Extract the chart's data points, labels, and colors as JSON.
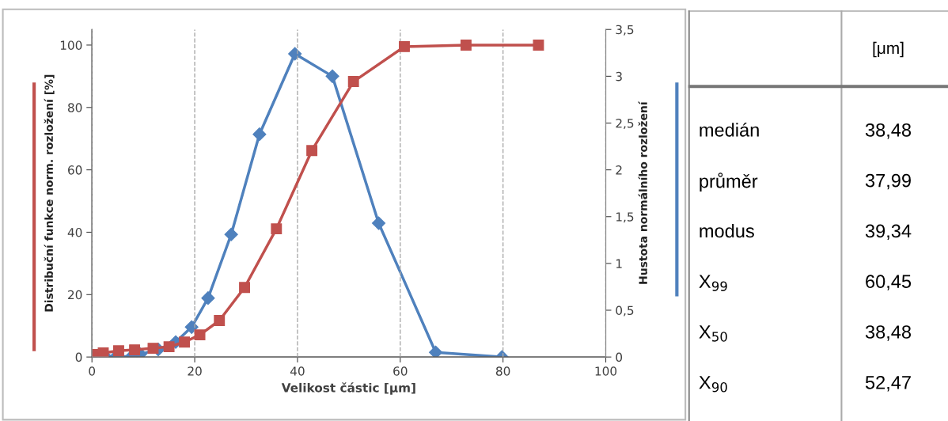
{
  "chart_data": [
    {
      "type": "line",
      "xlabel": "Velikost částic [μm]",
      "ylabel": "Distribuční funkce norm. rozložení [%]",
      "y2label": "Hustota normálního rozložení",
      "xlim": [
        0,
        100
      ],
      "xticks": [
        0,
        20,
        40,
        60,
        80,
        100
      ],
      "ylim": [
        0,
        105
      ],
      "yticks": [
        0,
        20,
        40,
        60,
        80,
        100
      ],
      "y2lim": [
        0,
        3.5
      ],
      "y2ticks": [
        0,
        {
          "value": 0.5,
          "label": "0,5"
        },
        1,
        {
          "value": 1.5,
          "label": "1,5"
        },
        2,
        {
          "value": 2.5,
          "label": "2,5"
        },
        3,
        {
          "value": 3.5,
          "label": "3,5"
        }
      ],
      "grid": "x",
      "line_style": "solid",
      "legend": false,
      "series": [
        {
          "color": "#c0504d",
          "marker": "square",
          "x": [
            0.2,
            2.2,
            5.2,
            8.3,
            11.9,
            15,
            18,
            21,
            24.8,
            29.7,
            35.9,
            42.8,
            50.9,
            60.8,
            72.8,
            86.9
          ],
          "values": [
            0.8,
            1.3,
            2,
            2.3,
            2.8,
            3.3,
            4.8,
            7.1,
            11.7,
            22.3,
            41.1,
            66.2,
            88.3,
            99.5,
            100,
            100
          ]
        },
        {
          "color": "#4f81bd",
          "marker": "diamond",
          "axis": "y2",
          "x": [
            0.5,
            2.5,
            4.6,
            7.8,
            9.4,
            12.9,
            16.3,
            19.4,
            22.6,
            27.1,
            32.6,
            39.5,
            46.8,
            55.8,
            66.9,
            79.8
          ],
          "values": [
            0,
            0.01,
            0,
            0.01,
            0.03,
            0.08,
            0.16,
            0.32,
            0.63,
            1.31,
            2.38,
            3.24,
            3.0,
            1.43,
            0.05,
            0
          ]
        }
      ]
    },
    {
      "type": "other",
      "categories": [
        "medián",
        "průměr",
        "modus",
        "X$_{99}$",
        "X$_{50}$",
        "X$_{90}$"
      ],
      "legend_title": "[μm]",
      "value_labels": [
        "38,48",
        "37,99",
        "39,34",
        "60,45",
        "38,48",
        "52,47"
      ]
    }
  ]
}
